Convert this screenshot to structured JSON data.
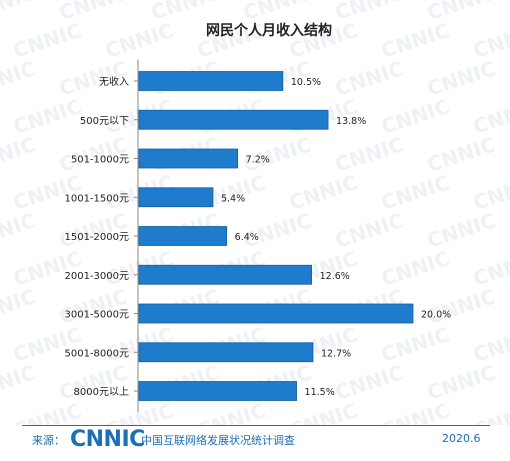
{
  "chart_data": {
    "type": "bar",
    "orientation": "horizontal",
    "title": "网民个人月收入结构",
    "categories": [
      "无收入",
      "500元以下",
      "501-1000元",
      "1001-1500元",
      "1501-2000元",
      "2001-3000元",
      "3001-5000元",
      "5001-8000元",
      "8000元以上"
    ],
    "values": [
      10.5,
      13.8,
      7.2,
      5.4,
      6.4,
      12.6,
      20.0,
      12.7,
      11.5
    ],
    "value_labels": [
      "10.5%",
      "13.8%",
      "7.2%",
      "5.4%",
      "6.4%",
      "12.6%",
      "20.0%",
      "12.7%",
      "11.5%"
    ],
    "unit": "%",
    "xlim": [
      0,
      20
    ],
    "grid": false,
    "legend": "none",
    "colors": {
      "bar": "#1f7bcb",
      "bar_border": "#15609f",
      "label": "#222222"
    }
  },
  "watermark": "CNNIC",
  "footer": {
    "source_label": "来源：",
    "logo_text": "CNNIC",
    "org": "中国互联网络发展状况统计调查",
    "date": "2020.6"
  }
}
